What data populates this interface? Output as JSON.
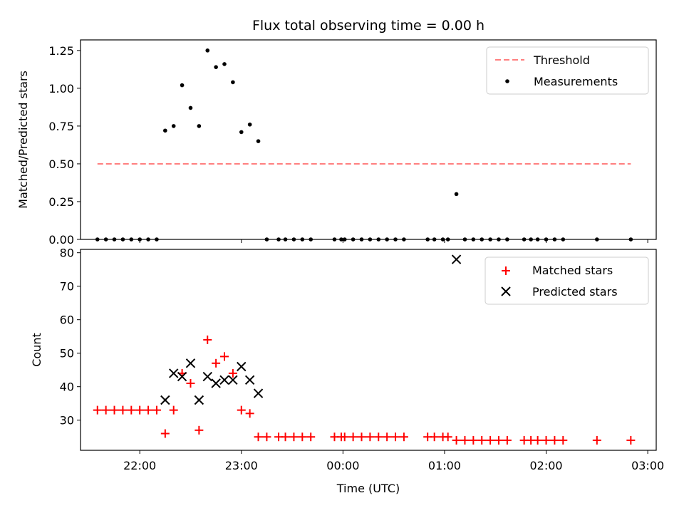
{
  "chart_data": [
    {
      "type": "scatter",
      "title": "Flux total observing time = 0.00 h",
      "xlabel": "",
      "ylabel": "Matched/Predicted stars",
      "xlim": [
        "21:25",
        "03:05"
      ],
      "ylim": [
        0,
        1.32
      ],
      "yticks": [
        0,
        0.25,
        0.5,
        0.75,
        1.0,
        1.25
      ],
      "ytick_labels": [
        "0.00",
        "0.25",
        "0.50",
        "0.75",
        "1.00",
        "1.25"
      ],
      "xticks": [
        "22:00",
        "23:00",
        "00:00",
        "01:00",
        "02:00",
        "03:00"
      ],
      "legend_position": "upper right",
      "grid": false,
      "series": [
        {
          "name": "Threshold",
          "kind": "dashed-line",
          "color": "#ff7f7f",
          "points": [
            [
              "21:35",
              0.5
            ],
            [
              "02:50",
              0.5
            ]
          ]
        },
        {
          "name": "Measurements",
          "kind": "dot",
          "color": "#000000",
          "points": [
            [
              "21:35",
              0
            ],
            [
              "21:40",
              0
            ],
            [
              "21:45",
              0
            ],
            [
              "21:50",
              0
            ],
            [
              "21:55",
              0
            ],
            [
              "22:00",
              0
            ],
            [
              "22:05",
              0
            ],
            [
              "22:10",
              0
            ],
            [
              "22:15",
              0.72
            ],
            [
              "22:20",
              0.75
            ],
            [
              "22:25",
              1.02
            ],
            [
              "22:30",
              0.87
            ],
            [
              "22:35",
              0.75
            ],
            [
              "22:40",
              1.25
            ],
            [
              "22:45",
              1.14
            ],
            [
              "22:50",
              1.16
            ],
            [
              "22:55",
              1.04
            ],
            [
              "23:00",
              0.71
            ],
            [
              "23:05",
              0.76
            ],
            [
              "23:10",
              0.65
            ],
            [
              "23:15",
              0
            ],
            [
              "23:22",
              0
            ],
            [
              "23:26",
              0
            ],
            [
              "23:31",
              0
            ],
            [
              "23:36",
              0
            ],
            [
              "23:41",
              0
            ],
            [
              "23:55",
              0
            ],
            [
              "23:59",
              0
            ],
            [
              "00:01",
              0
            ],
            [
              "00:06",
              0
            ],
            [
              "00:11",
              0
            ],
            [
              "00:16",
              0
            ],
            [
              "00:21",
              0
            ],
            [
              "00:26",
              0
            ],
            [
              "00:31",
              0
            ],
            [
              "00:36",
              0
            ],
            [
              "00:50",
              0
            ],
            [
              "00:54",
              0
            ],
            [
              "00:59",
              0
            ],
            [
              "01:02",
              0
            ],
            [
              "01:07",
              0.3
            ],
            [
              "01:12",
              0
            ],
            [
              "01:17",
              0
            ],
            [
              "01:22",
              0
            ],
            [
              "01:27",
              0
            ],
            [
              "01:32",
              0
            ],
            [
              "01:37",
              0
            ],
            [
              "01:47",
              0
            ],
            [
              "01:51",
              0
            ],
            [
              "01:55",
              0
            ],
            [
              "02:00",
              0
            ],
            [
              "02:05",
              0
            ],
            [
              "02:10",
              0
            ],
            [
              "02:30",
              0
            ],
            [
              "02:50",
              0
            ]
          ]
        }
      ]
    },
    {
      "type": "scatter",
      "title": "",
      "xlabel": "Time (UTC)",
      "ylabel": "Count",
      "xlim": [
        "21:25",
        "03:05"
      ],
      "ylim": [
        21,
        81
      ],
      "yticks": [
        30,
        40,
        50,
        60,
        70,
        80
      ],
      "ytick_labels": [
        "30",
        "40",
        "50",
        "60",
        "70",
        "80"
      ],
      "xticks": [
        "22:00",
        "23:00",
        "00:00",
        "01:00",
        "02:00",
        "03:00"
      ],
      "xtick_labels": [
        "22:00",
        "23:00",
        "00:00",
        "01:00",
        "02:00",
        "03:00"
      ],
      "legend_position": "upper right",
      "grid": false,
      "series": [
        {
          "name": "Matched stars",
          "kind": "plus",
          "color": "#ff0000",
          "points": [
            [
              "21:35",
              33
            ],
            [
              "21:40",
              33
            ],
            [
              "21:45",
              33
            ],
            [
              "21:50",
              33
            ],
            [
              "21:55",
              33
            ],
            [
              "22:00",
              33
            ],
            [
              "22:05",
              33
            ],
            [
              "22:10",
              33
            ],
            [
              "22:15",
              26
            ],
            [
              "22:20",
              33
            ],
            [
              "22:25",
              44
            ],
            [
              "22:30",
              41
            ],
            [
              "22:35",
              27
            ],
            [
              "22:40",
              54
            ],
            [
              "22:45",
              47
            ],
            [
              "22:50",
              49
            ],
            [
              "22:55",
              44
            ],
            [
              "23:00",
              33
            ],
            [
              "23:05",
              32
            ],
            [
              "23:10",
              25
            ],
            [
              "23:15",
              25
            ],
            [
              "23:22",
              25
            ],
            [
              "23:26",
              25
            ],
            [
              "23:31",
              25
            ],
            [
              "23:36",
              25
            ],
            [
              "23:41",
              25
            ],
            [
              "23:55",
              25
            ],
            [
              "23:59",
              25
            ],
            [
              "00:01",
              25
            ],
            [
              "00:06",
              25
            ],
            [
              "00:11",
              25
            ],
            [
              "00:16",
              25
            ],
            [
              "00:21",
              25
            ],
            [
              "00:26",
              25
            ],
            [
              "00:31",
              25
            ],
            [
              "00:36",
              25
            ],
            [
              "00:50",
              25
            ],
            [
              "00:54",
              25
            ],
            [
              "00:59",
              25
            ],
            [
              "01:02",
              25
            ],
            [
              "01:07",
              24
            ],
            [
              "01:12",
              24
            ],
            [
              "01:17",
              24
            ],
            [
              "01:22",
              24
            ],
            [
              "01:27",
              24
            ],
            [
              "01:32",
              24
            ],
            [
              "01:37",
              24
            ],
            [
              "01:47",
              24
            ],
            [
              "01:51",
              24
            ],
            [
              "01:55",
              24
            ],
            [
              "02:00",
              24
            ],
            [
              "02:05",
              24
            ],
            [
              "02:10",
              24
            ],
            [
              "02:30",
              24
            ],
            [
              "02:50",
              24
            ]
          ]
        },
        {
          "name": "Predicted stars",
          "kind": "x",
          "color": "#000000",
          "points": [
            [
              "22:15",
              36
            ],
            [
              "22:20",
              44
            ],
            [
              "22:25",
              43
            ],
            [
              "22:30",
              47
            ],
            [
              "22:35",
              36
            ],
            [
              "22:40",
              43
            ],
            [
              "22:45",
              41
            ],
            [
              "22:50",
              42
            ],
            [
              "22:55",
              42
            ],
            [
              "23:00",
              46
            ],
            [
              "23:05",
              42
            ],
            [
              "23:10",
              38
            ],
            [
              "01:07",
              78
            ]
          ]
        }
      ]
    }
  ],
  "colors": {
    "threshold": "#ff7f7f",
    "measurements": "#000000",
    "matched": "#ff0000",
    "predicted": "#000000"
  }
}
